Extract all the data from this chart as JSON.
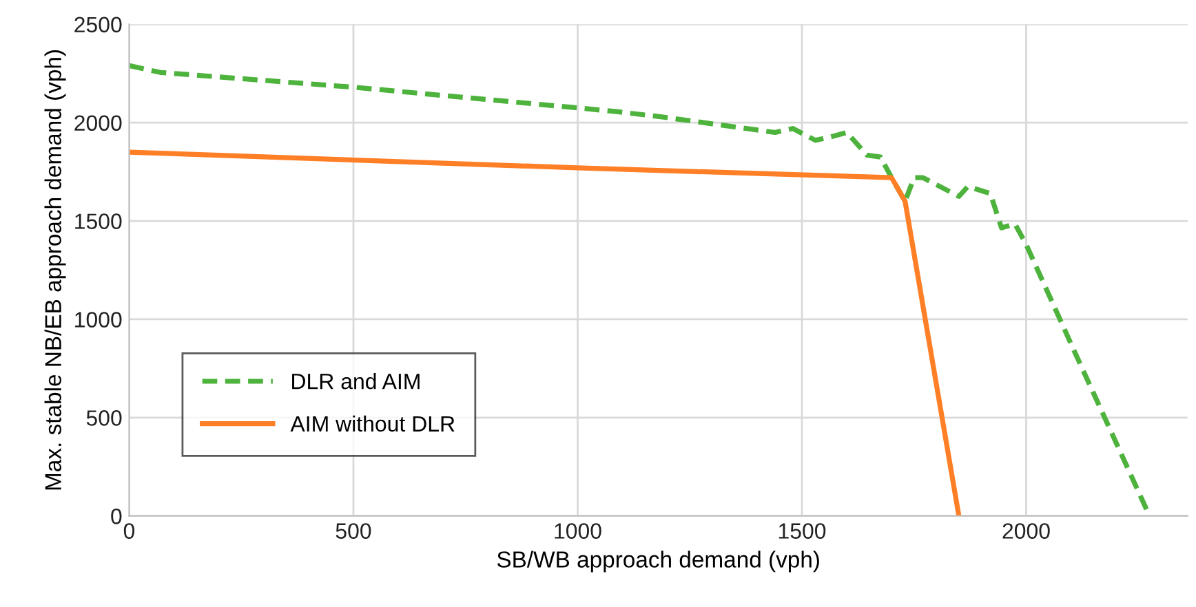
{
  "chart_data": {
    "type": "line",
    "xlabel": "SB/WB approach demand (vph)",
    "ylabel": "Max. stable NB/EB approach demand (vph)",
    "xlim": [
      0,
      2360
    ],
    "xticks": [
      0,
      500,
      1000,
      1500,
      2000
    ],
    "ylim": [
      0,
      2500
    ],
    "yticks": [
      0,
      500,
      1000,
      1500,
      2000,
      2500
    ],
    "grid": true,
    "legend": "bottom left",
    "series": [
      {
        "name": "DLR and AIM",
        "color": "#4eb33d",
        "line_style": "dashed",
        "x": [
          0,
          70,
          500,
          1000,
          1090,
          1185,
          1440,
          1480,
          1530,
          1560,
          1600,
          1645,
          1675,
          1700,
          1730,
          1750,
          1770,
          1850,
          1870,
          1920,
          1945,
          1975,
          2000,
          2105,
          2275
        ],
        "values": [
          2290,
          2255,
          2180,
          2075,
          2055,
          2030,
          1950,
          1970,
          1910,
          1925,
          1950,
          1835,
          1825,
          1720,
          1600,
          1720,
          1720,
          1625,
          1675,
          1640,
          1465,
          1485,
          1380,
          850,
          0
        ]
      },
      {
        "name": "AIM without DLR",
        "color": "#ff7f27",
        "line_style": "solid",
        "x": [
          0,
          1000,
          1700,
          1730,
          1850
        ],
        "values": [
          1850,
          1770,
          1720,
          1600,
          0
        ]
      }
    ]
  }
}
